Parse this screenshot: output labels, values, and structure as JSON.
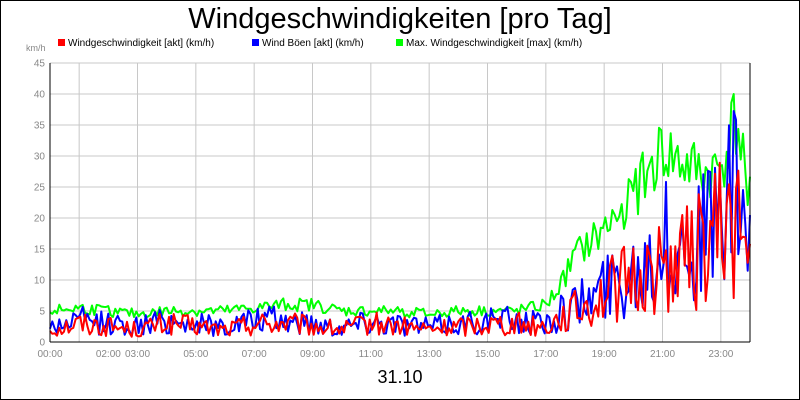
{
  "chart_data": {
    "type": "line",
    "title": "Windgeschwindigkeiten [pro Tag]",
    "ylabel": "km/h",
    "xlabel": "31.10",
    "ylim": [
      0,
      45
    ],
    "yticks": [
      0,
      5,
      10,
      15,
      20,
      25,
      30,
      35,
      40,
      45
    ],
    "xlim": [
      0,
      24
    ],
    "xticks": [
      {
        "label": "00:00",
        "value": 0
      },
      {
        "label": "02:00",
        "value": 2.0
      },
      {
        "label": "03:00",
        "value": 3.0
      },
      {
        "label": "05:00",
        "value": 5
      },
      {
        "label": "07:00",
        "value": 7
      },
      {
        "label": "09:00",
        "value": 9
      },
      {
        "label": "11:00",
        "value": 11
      },
      {
        "label": "13:00",
        "value": 13
      },
      {
        "label": "15:00",
        "value": 15
      },
      {
        "label": "17:00",
        "value": 17
      },
      {
        "label": "19:00",
        "value": 19
      },
      {
        "label": "21:00",
        "value": 21
      },
      {
        "label": "23:00",
        "value": 23
      }
    ],
    "grid": true,
    "legend_position": "top",
    "series": [
      {
        "name": "Windgeschwindigkeit [akt] (km/h)",
        "color": "#ff0000",
        "x": [
          0,
          1,
          2,
          3,
          4,
          5,
          6,
          7,
          8,
          9,
          10,
          11,
          12,
          13,
          14,
          15,
          16,
          17,
          17.5,
          18,
          18.5,
          19,
          19.5,
          20,
          20.5,
          21,
          21.5,
          22,
          22.5,
          23,
          23.5,
          24
        ],
        "values": [
          2,
          3,
          2.5,
          2,
          3,
          2.5,
          2,
          3,
          3,
          2.5,
          2,
          3,
          2.5,
          2,
          2.5,
          3,
          3,
          2.5,
          4,
          5,
          6,
          8,
          9,
          10,
          11,
          12,
          13,
          14,
          16,
          18,
          20,
          12
        ]
      },
      {
        "name": "Wind Böen [akt] (km/h)",
        "color": "#0000ff",
        "x": [
          0,
          1,
          2,
          3,
          4,
          5,
          6,
          7,
          8,
          9,
          10,
          11,
          12,
          13,
          14,
          15,
          16,
          17,
          17.5,
          18,
          18.5,
          19,
          19.5,
          20,
          20.5,
          21,
          21.5,
          22,
          22.5,
          23,
          23.5,
          24
        ],
        "values": [
          2.5,
          3.5,
          3,
          2.5,
          3.5,
          3,
          2.5,
          3.5,
          3.5,
          3,
          2.5,
          3.5,
          3,
          2.5,
          3,
          3.5,
          3.5,
          3,
          4.5,
          6,
          7,
          9,
          10,
          12,
          14,
          16,
          15,
          16,
          18,
          20,
          24,
          16
        ]
      },
      {
        "name": "Max. Windgeschwindigkeit [max] (km/h)",
        "color": "#00ff00",
        "x": [
          0,
          1,
          2,
          3,
          4,
          5,
          6,
          7,
          8,
          9,
          10,
          11,
          12,
          13,
          14,
          15,
          16,
          17,
          17.5,
          18,
          18.5,
          19,
          19.5,
          20,
          20.5,
          21,
          21.5,
          22,
          22.5,
          23,
          23.5,
          24
        ],
        "values": [
          5,
          5.5,
          5,
          4.5,
          5,
          5,
          5,
          5.5,
          6,
          6,
          5,
          5,
          5,
          4.5,
          5,
          5,
          5,
          6,
          9,
          14,
          16,
          18,
          21,
          24,
          27,
          31,
          29,
          28,
          27,
          28,
          36,
          25
        ]
      }
    ]
  }
}
